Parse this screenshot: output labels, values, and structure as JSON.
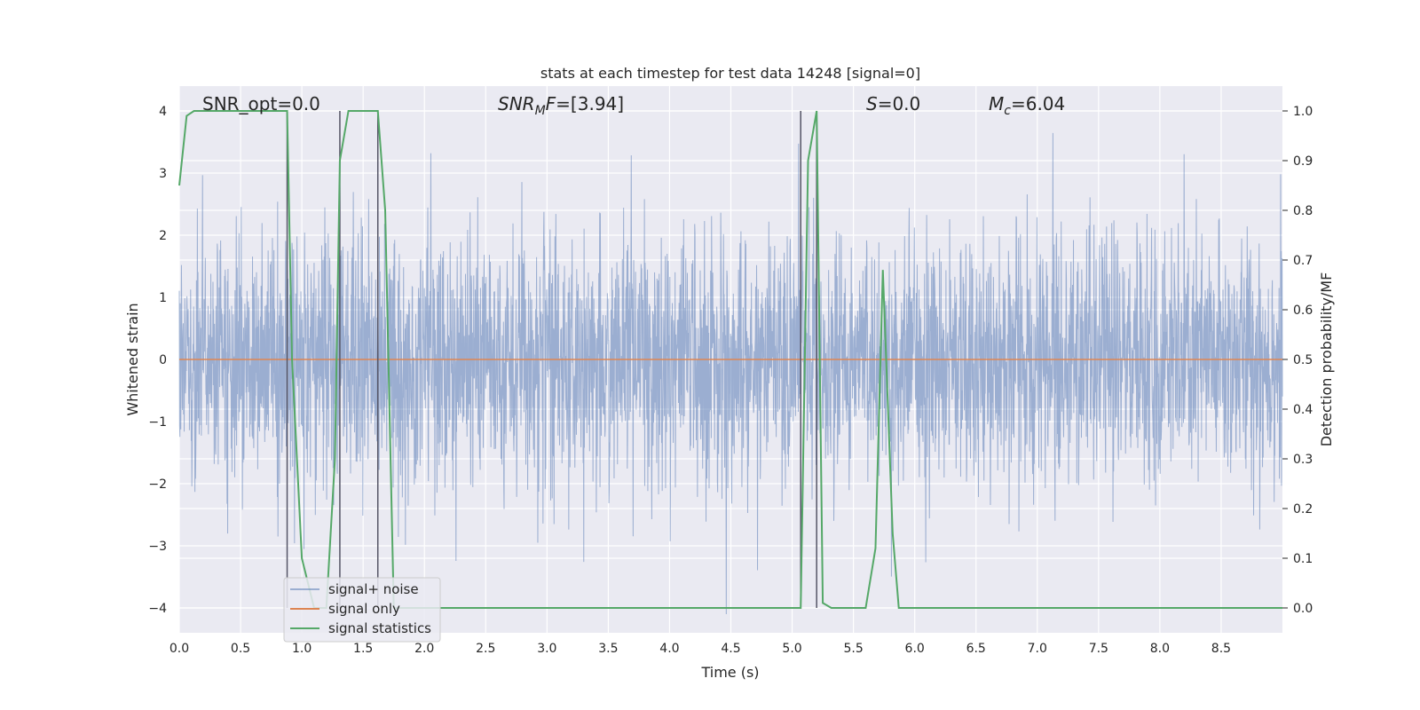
{
  "chart_data": {
    "type": "line",
    "title": "stats at each timestep for test data 14248 [signal=0]",
    "xlabel": "Time (s)",
    "ylabel": "Whitened strain",
    "y2label": "Detection probability/MF",
    "xlim": [
      0,
      9.0
    ],
    "ylim": [
      -4.4,
      4.4
    ],
    "y2lim": [
      -0.05,
      1.05
    ],
    "x_ticks": [
      "0.0",
      "0.5",
      "1.0",
      "1.5",
      "2.0",
      "2.5",
      "3.0",
      "3.5",
      "4.0",
      "4.5",
      "5.0",
      "5.5",
      "6.0",
      "6.5",
      "7.0",
      "7.5",
      "8.0",
      "8.5"
    ],
    "x_tick_values": [
      0,
      0.5,
      1.0,
      1.5,
      2.0,
      2.5,
      3.0,
      3.5,
      4.0,
      4.5,
      5.0,
      5.5,
      6.0,
      6.5,
      7.0,
      7.5,
      8.0,
      8.5
    ],
    "y_ticks": [
      "−4",
      "−3",
      "−2",
      "−1",
      "0",
      "1",
      "2",
      "3",
      "4"
    ],
    "y_tick_values": [
      -4,
      -3,
      -2,
      -1,
      0,
      1,
      2,
      3,
      4
    ],
    "y2_ticks": [
      "0.0",
      "0.1",
      "0.2",
      "0.3",
      "0.4",
      "0.5",
      "0.6",
      "0.7",
      "0.8",
      "0.9",
      "1.0"
    ],
    "y2_tick_values": [
      0,
      0.1,
      0.2,
      0.3,
      0.4,
      0.5,
      0.6,
      0.7,
      0.8,
      0.9,
      1.0
    ],
    "grid": true,
    "legend_position": "lower-left",
    "annotations": [
      {
        "text": "SNR_opt=0.0",
        "x": 0.2,
        "y": 4.1
      },
      {
        "text": "SNR_MF=[3.94]",
        "x": 2.6,
        "y": 4.1
      },
      {
        "text": "S=0.0",
        "x": 5.6,
        "y": 4.1
      },
      {
        "text": "M_c=6.04",
        "x": 6.6,
        "y": 4.1
      }
    ],
    "vertical_lines": [
      0.88,
      1.31,
      1.62,
      5.07,
      5.2
    ],
    "series": [
      {
        "name": "signal+ noise",
        "color": "#4c72b0",
        "opacity": 0.5,
        "noise_amplitude_std": 1.0,
        "note_values": "dense whitened noise between about -4 and 4"
      },
      {
        "name": "signal only",
        "color": "#dd8452",
        "values_constant": 0
      },
      {
        "name": "signal statistics",
        "color": "#55a868",
        "axis": "right",
        "x": [
          0.0,
          0.06,
          0.12,
          0.2,
          0.5,
          0.8,
          0.88,
          0.92,
          1.0,
          1.1,
          1.2,
          1.27,
          1.31,
          1.38,
          1.45,
          1.55,
          1.62,
          1.68,
          1.75,
          1.8,
          2.0,
          3.0,
          4.0,
          4.5,
          5.0,
          5.07,
          5.13,
          5.2,
          5.25,
          5.32,
          5.4,
          5.6,
          5.68,
          5.74,
          5.82,
          5.87,
          6.0,
          6.5,
          7.0,
          7.5,
          8.0,
          8.3,
          8.5,
          9.0
        ],
        "values": [
          0.85,
          0.99,
          1.0,
          1.0,
          1.0,
          1.0,
          1.0,
          0.5,
          0.1,
          0.0,
          0.0,
          0.3,
          0.9,
          1.0,
          1.0,
          1.0,
          1.0,
          0.8,
          0.0,
          0.0,
          0.0,
          0.0,
          0.0,
          0.0,
          0.0,
          0.0,
          0.9,
          1.0,
          0.01,
          0.0,
          0.0,
          0.0,
          0.12,
          0.68,
          0.15,
          0.0,
          0.0,
          0.0,
          0.0,
          0.0,
          0.0,
          0.0,
          0.0,
          0.0
        ]
      }
    ]
  }
}
